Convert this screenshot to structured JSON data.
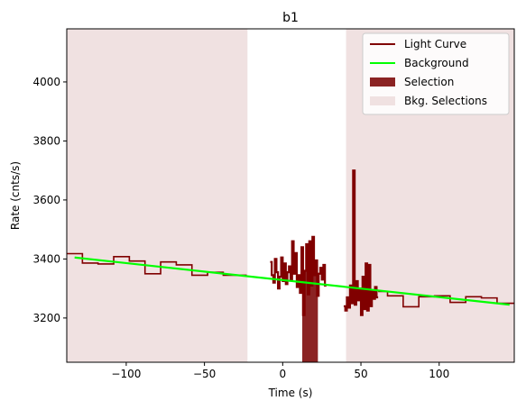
{
  "chart_data": {
    "type": "line",
    "title": "b1",
    "xlabel": "Time (s)",
    "ylabel": "Rate (cnts/s)",
    "xlim": [
      -138,
      148
    ],
    "ylim": [
      3050,
      4180
    ],
    "xticks": [
      -100,
      -50,
      0,
      50,
      100
    ],
    "yticks": [
      3200,
      3400,
      3600,
      3800,
      4000
    ],
    "grid": false,
    "legend_position": "top-right",
    "legend": [
      {
        "label": "Light Curve",
        "kind": "line",
        "color": "#800000"
      },
      {
        "label": "Background",
        "kind": "line",
        "color": "#00ff00"
      },
      {
        "label": "Selection",
        "kind": "patch",
        "color": "#8b2323"
      },
      {
        "label": "Bkg. Selections",
        "kind": "patch",
        "color": "#f0e1e1"
      }
    ],
    "background_fit": {
      "x": [
        -133,
        145
      ],
      "y": [
        3405,
        3245
      ],
      "color": "#00ff00"
    },
    "selection": {
      "x_range": [
        12.5,
        22.5
      ],
      "color": "#8b2323"
    },
    "bkg_selections": [
      {
        "x_range": [
          -138,
          -22.5
        ],
        "color": "#f0e1e1"
      },
      {
        "x_range": [
          40.5,
          148
        ],
        "color": "#f0e1e1"
      }
    ],
    "light_curve": {
      "color": "#800000",
      "segments": [
        {
          "x": [
            -138,
            -128,
            -118,
            -108,
            -98,
            -88,
            -78,
            -68,
            -58,
            -48,
            -38,
            -23
          ],
          "y": [
            3418,
            3386,
            3383,
            3408,
            3393,
            3350,
            3390,
            3380,
            3345,
            3355,
            3345,
            3360
          ]
        },
        {
          "x": [
            -8,
            -7,
            -6,
            -5,
            -4,
            -3,
            -2,
            -1,
            0,
            1,
            2,
            3,
            4,
            5,
            6,
            7,
            8,
            9,
            10,
            11,
            12,
            13,
            14,
            15,
            16,
            17,
            18,
            19,
            20,
            21,
            22,
            23,
            24,
            25,
            26,
            27,
            28
          ],
          "y": [
            3390,
            3345,
            3320,
            3400,
            3355,
            3300,
            3340,
            3405,
            3325,
            3385,
            3315,
            3355,
            3375,
            3330,
            3460,
            3350,
            3420,
            3305,
            3345,
            3285,
            3440,
            3210,
            3360,
            3450,
            3280,
            3460,
            3310,
            3475,
            3345,
            3395,
            3275,
            3350,
            3370,
            3330,
            3380,
            3310,
            3365
          ]
        },
        {
          "x": [
            39,
            40,
            41,
            42,
            43,
            44,
            45,
            46,
            47,
            48,
            49,
            50,
            51,
            52,
            53,
            54,
            55,
            56,
            57,
            58,
            59,
            60,
            61
          ],
          "y": [
            3240,
            3225,
            3270,
            3235,
            3310,
            3250,
            3700,
            3245,
            3325,
            3260,
            3300,
            3210,
            3340,
            3230,
            3385,
            3225,
            3380,
            3240,
            3290,
            3265,
            3305,
            3270,
            3290
          ]
        },
        {
          "x": [
            61,
            67,
            77,
            87,
            97,
            107,
            117,
            127,
            137,
            148
          ],
          "y": [
            3290,
            3275,
            3238,
            3272,
            3275,
            3253,
            3272,
            3268,
            3250,
            3255
          ]
        }
      ]
    }
  }
}
